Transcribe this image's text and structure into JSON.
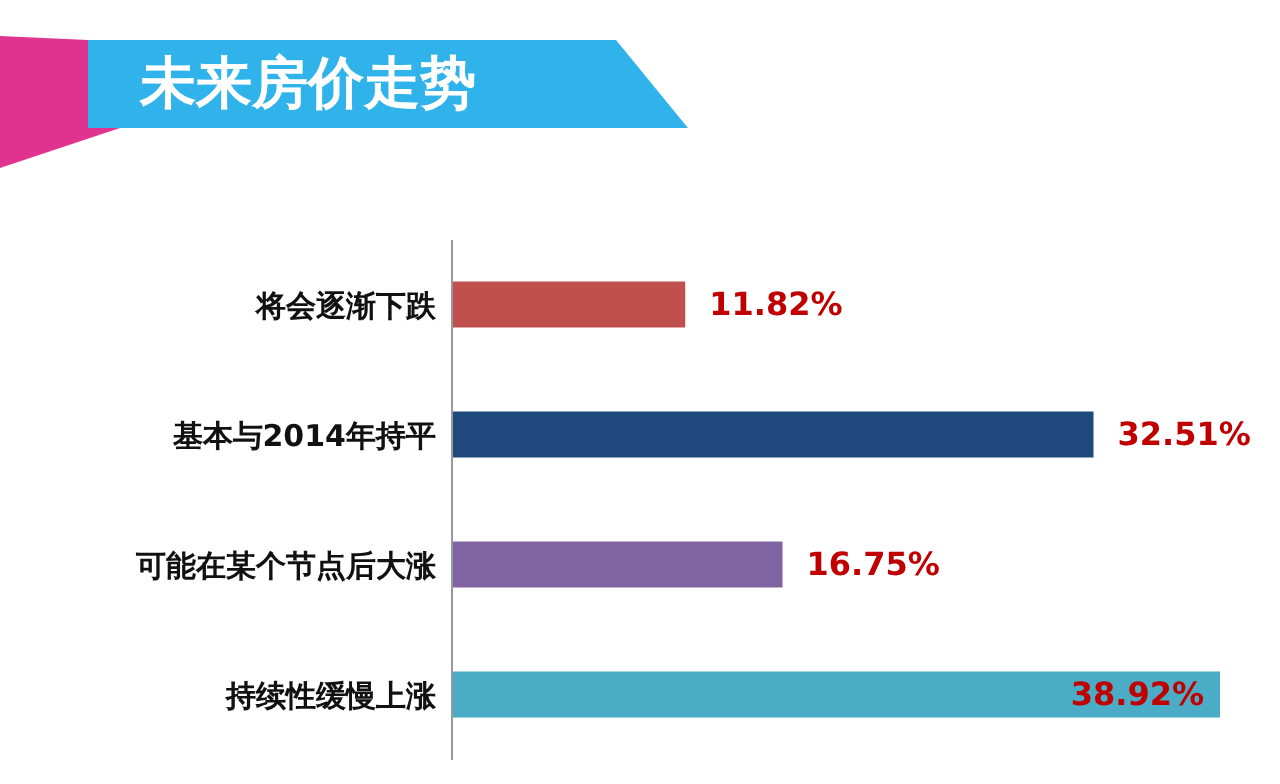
{
  "chart_data": {
    "type": "bar",
    "title": "未来房价走势",
    "orientation": "horizontal",
    "categories": [
      "将会逐渐下跌",
      "基本与2014年持平",
      "可能在某个节点后大涨",
      "持续性缓慢上涨"
    ],
    "values": [
      11.82,
      32.51,
      16.75,
      38.92
    ],
    "colors": [
      "#c0504d",
      "#1f497d",
      "#8064a2",
      "#4bacc6"
    ],
    "value_labels": [
      "11.82%",
      "32.51%",
      "16.75%",
      "38.92%"
    ]
  }
}
